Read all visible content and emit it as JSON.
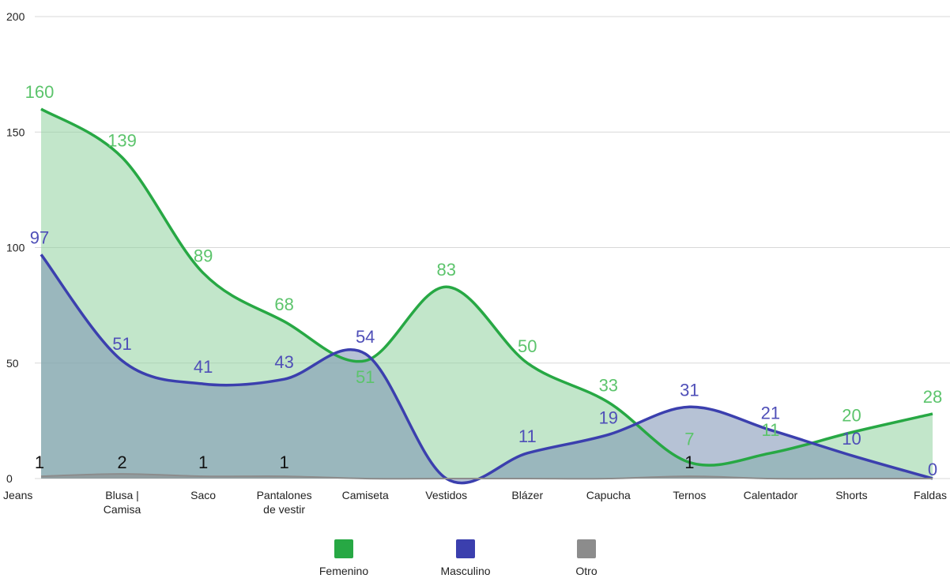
{
  "chart_data": {
    "type": "area",
    "categories": [
      "Jeans",
      "Blusa | Camisa",
      "Saco",
      "Pantalones de vestir",
      "Camiseta",
      "Vestidos",
      "Blázer",
      "Capucha",
      "Ternos",
      "Calentador",
      "Shorts",
      "Faldas"
    ],
    "category_lines": [
      [
        "Jeans"
      ],
      [
        "Blusa |",
        "Camisa"
      ],
      [
        "Saco"
      ],
      [
        "Pantalones",
        "de vestir"
      ],
      [
        "Camiseta"
      ],
      [
        "Vestidos"
      ],
      [
        "Blázer"
      ],
      [
        "Capucha"
      ],
      [
        "Ternos"
      ],
      [
        "Calentador"
      ],
      [
        "Shorts"
      ],
      [
        "Faldas"
      ]
    ],
    "ylim": [
      0,
      200
    ],
    "yticks": [
      0,
      50,
      100,
      150,
      200
    ],
    "grid": true,
    "legend_position": "bottom",
    "series": [
      {
        "name": "Femenino",
        "color": "#27a844",
        "fill": "#8fd19e",
        "values": [
          160,
          139,
          89,
          68,
          51,
          83,
          50,
          33,
          7,
          11,
          20,
          28
        ],
        "labels": [
          "160",
          "139",
          "89",
          "68",
          "51",
          "83",
          "50",
          "33",
          "7",
          "11",
          "20",
          "28"
        ]
      },
      {
        "name": "Masculino",
        "color": "#3b3fae",
        "fill": "#7a8fb2",
        "values": [
          97,
          51,
          41,
          43,
          54,
          0,
          11,
          19,
          31,
          21,
          10,
          0
        ],
        "labels": [
          "97",
          "51",
          "41",
          "43",
          "54",
          "",
          "11",
          "19",
          "31",
          "21",
          "10",
          "0"
        ]
      },
      {
        "name": "Otro",
        "color": "#8c8c8c",
        "fill": "#8c8c8c",
        "values": [
          1,
          2,
          1,
          1,
          0,
          0,
          0,
          0,
          1,
          0,
          0,
          0
        ],
        "labels": [
          "1",
          "2",
          "1",
          "1",
          "",
          "",
          "",
          "",
          "1",
          "",
          "",
          ""
        ]
      }
    ]
  }
}
